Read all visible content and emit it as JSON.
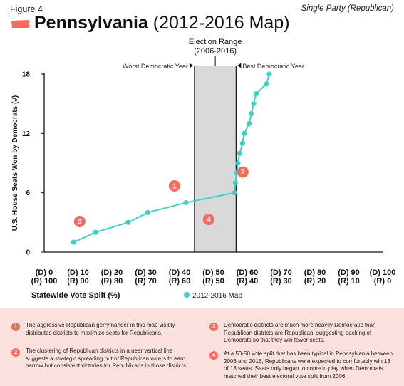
{
  "header": {
    "figure_label": "Figure 4",
    "subtitle": "Single Party (Republican)",
    "state_name": "Pennsylvania",
    "title_suffix": "(2012-2016 Map)"
  },
  "colors": {
    "series": "#3fd1c3",
    "marker": "#f26d5e",
    "band": "#d9d9d9",
    "notes_bg": "#fbe1dd"
  },
  "chart_data": {
    "type": "line",
    "ylabel": "U.S. House Seats Won by Democrats (#)",
    "xlabel": "Statewide Vote Split (%)",
    "ylim": [
      0,
      18
    ],
    "yticks": [
      0,
      6,
      12,
      18
    ],
    "xlim": [
      0,
      100
    ],
    "xticks": [
      {
        "d": "(D) 0",
        "r": "(R) 100"
      },
      {
        "d": "(D) 10",
        "r": "(R) 90"
      },
      {
        "d": "(D) 20",
        "r": "(R) 80"
      },
      {
        "d": "(D) 30",
        "r": "(R) 70"
      },
      {
        "d": "(D) 40",
        "r": "(R) 60"
      },
      {
        "d": "(D) 50",
        "r": "(R) 50"
      },
      {
        "d": "(D) 60",
        "r": "(R) 40"
      },
      {
        "d": "(D) 70",
        "r": "(R) 30"
      },
      {
        "d": "(D) 80",
        "r": "(R) 20"
      },
      {
        "d": "(D) 90",
        "r": "(R) 10"
      },
      {
        "d": "(D) 100",
        "r": "(R) 0"
      }
    ],
    "election_range": {
      "title_line1": "Election Range",
      "title_line2": "(2006-2016)",
      "x_start": 44.4,
      "x_end": 56.7,
      "left_label": "Worst Democratic Year",
      "right_label": "Best Democratic Year"
    },
    "series": [
      {
        "name": "2012-2016 Map",
        "x": [
          8.7,
          15.2,
          24.8,
          30.6,
          41.9,
          56.2,
          56.5,
          56.9,
          57.2,
          57.8,
          58.6,
          59.1,
          60.6,
          61.2,
          61.9,
          62.6,
          65.7,
          66.5
        ],
        "y": [
          1,
          2,
          3,
          4,
          5,
          6,
          7,
          8,
          9,
          10,
          11,
          12,
          13,
          14,
          15,
          16,
          17,
          18
        ]
      }
    ],
    "annotations": [
      {
        "label": "1",
        "x": 38.5,
        "y": 6.7
      },
      {
        "label": "2",
        "x": 58.7,
        "y": 8.1
      },
      {
        "label": "3",
        "x": 10.5,
        "y": 3.1
      },
      {
        "label": "4",
        "x": 48.6,
        "y": 3.3
      }
    ]
  },
  "notes": [
    {
      "num": "1",
      "text": "The aggressive Republican gerrymander in this map visibly distributes districts to maximize seats for Republicans."
    },
    {
      "num": "2",
      "text": "The clustering of Republican districts in a near vertical line suggests a strategic spreading out of Republican voters to earn narrow but consistent victories for Republicans in those districts."
    },
    {
      "num": "3",
      "text": "Democratic districts are much more heavily Democratic than Republican districts are Republican, suggesting packing of Democrats so that they win fewer seats."
    },
    {
      "num": "4",
      "text": "At a 50-50 vote split that has been typical in Pennsylvania between 2006 and 2016, Republicans were expected to comfortably win 13 of 18 seats. Seats only began to come in play when Democrats matched their best electoral vote split from 2006."
    }
  ]
}
